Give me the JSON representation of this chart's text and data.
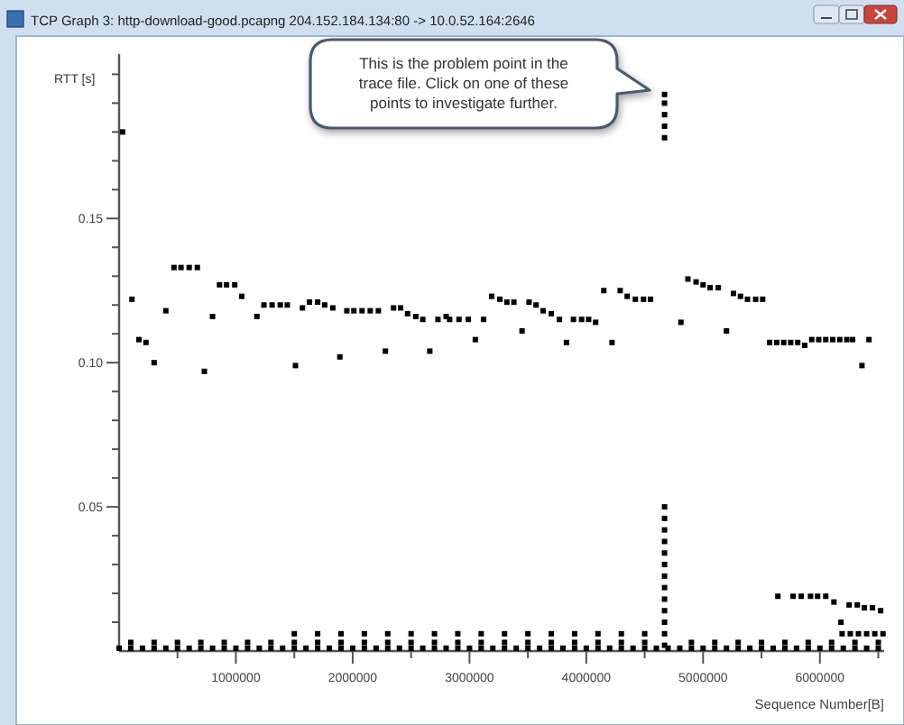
{
  "chart_data": {
    "type": "scatter",
    "title": "TCP Graph 3: http-download-good.pcapng 204.152.184.134:80 -> 10.0.52.164:2646",
    "xlabel": "Sequence Number[B]",
    "ylabel": "RTT [s]",
    "marker": "square",
    "annotations": [
      "This is the problem point in the trace file. Click on one of these points to investigate further."
    ],
    "xlim": [
      0,
      6550000
    ],
    "ylim": [
      0,
      0.207
    ],
    "xticks": [
      {
        "value": 500000,
        "label": null
      },
      1000000,
      {
        "value": 1500000,
        "label": null
      },
      2000000,
      {
        "value": 2500000,
        "label": null
      },
      3000000,
      {
        "value": 3500000,
        "label": null
      },
      4000000,
      {
        "value": 4500000,
        "label": null
      },
      5000000,
      {
        "value": 5500000,
        "label": null
      },
      6000000,
      {
        "value": 6500000,
        "label": null
      }
    ],
    "yticks": [
      {
        "value": 0.01,
        "label": null
      },
      {
        "value": 0.02,
        "label": null
      },
      {
        "value": 0.03,
        "label": null
      },
      {
        "value": 0.04,
        "label": null
      },
      0.05,
      {
        "value": 0.06,
        "label": null
      },
      {
        "value": 0.07,
        "label": null
      },
      {
        "value": 0.08,
        "label": null
      },
      {
        "value": 0.09,
        "label": null
      },
      {
        "value": 0.1,
        "label": "0.10"
      },
      {
        "value": 0.11,
        "label": null
      },
      {
        "value": 0.12,
        "label": null
      },
      {
        "value": 0.13,
        "label": null
      },
      {
        "value": 0.14,
        "label": null
      },
      0.15,
      {
        "value": 0.16,
        "label": null
      },
      {
        "value": 0.17,
        "label": null
      },
      {
        "value": 0.18,
        "label": null
      },
      {
        "value": 0.19,
        "label": null
      },
      {
        "value": 0.2,
        "label": null
      }
    ],
    "series": [
      {
        "color": "#000000",
        "x": [
          30000,
          110000,
          170000,
          230000,
          300000,
          400000,
          470000,
          530000,
          600000,
          670000,
          730000,
          800000,
          860000,
          920000,
          990000,
          1050000,
          1180000,
          1240000,
          1310000,
          1380000,
          1440000,
          1510000,
          1570000,
          1630000,
          1700000,
          1760000,
          1830000,
          1890000,
          1950000,
          2010000,
          2080000,
          2150000,
          2220000,
          2280000,
          2350000,
          2410000,
          2470000,
          2540000,
          2600000,
          2660000,
          2730000,
          2800000,
          2830000,
          2910000,
          2990000,
          3050000,
          3120000,
          3190000,
          3260000,
          3320000,
          3380000,
          3450000,
          3510000,
          3570000,
          3630000,
          3700000,
          3770000,
          3830000,
          3890000,
          3960000,
          4020000,
          4080000,
          4150000,
          4220000,
          4290000,
          4350000,
          4420000,
          4490000,
          4550000,
          4810000,
          4870000,
          4940000,
          5000000,
          5060000,
          5130000,
          5200000,
          5260000,
          5320000,
          5380000,
          5450000,
          5510000,
          5570000,
          5630000,
          5690000,
          5750000,
          5810000,
          5870000,
          5930000,
          5990000,
          6050000,
          6110000,
          6170000,
          6230000,
          6280000,
          6360000,
          6420000
        ],
        "values": [
          0.18,
          0.122,
          0.108,
          0.107,
          0.1,
          0.118,
          0.133,
          0.133,
          0.133,
          0.133,
          0.097,
          0.116,
          0.127,
          0.127,
          0.127,
          0.123,
          0.116,
          0.12,
          0.12,
          0.12,
          0.12,
          0.099,
          0.119,
          0.121,
          0.121,
          0.12,
          0.119,
          0.102,
          0.118,
          0.118,
          0.118,
          0.118,
          0.118,
          0.104,
          0.119,
          0.119,
          0.117,
          0.116,
          0.115,
          0.104,
          0.115,
          0.116,
          0.115,
          0.115,
          0.115,
          0.108,
          0.115,
          0.123,
          0.122,
          0.121,
          0.121,
          0.111,
          0.121,
          0.12,
          0.118,
          0.117,
          0.115,
          0.107,
          0.115,
          0.115,
          0.115,
          0.114,
          0.125,
          0.107,
          0.125,
          0.123,
          0.122,
          0.122,
          0.122,
          0.114,
          0.129,
          0.128,
          0.127,
          0.126,
          0.126,
          0.111,
          0.124,
          0.123,
          0.122,
          0.122,
          0.122,
          0.107,
          0.107,
          0.107,
          0.107,
          0.107,
          0.106,
          0.108,
          0.108,
          0.108,
          0.108,
          0.108,
          0.108,
          0.108,
          0.099,
          0.108
        ]
      },
      {
        "color": "#000000",
        "x": [
          4670000,
          4670000,
          4670000,
          4670000,
          4670000,
          4670000,
          4670000,
          4670000,
          4670000,
          4670000,
          4670000,
          4670000,
          4670000,
          4670000,
          4670000,
          4670000,
          4670000,
          4670000
        ],
        "values": [
          0.002,
          0.006,
          0.01,
          0.014,
          0.018,
          0.022,
          0.026,
          0.03,
          0.034,
          0.038,
          0.042,
          0.046,
          0.05,
          0.178,
          0.182,
          0.186,
          0.19,
          0.193
        ]
      },
      {
        "color": "#000000",
        "x": [
          5640000,
          5770000,
          5840000,
          5920000,
          5980000,
          6050000,
          6120000,
          6180000,
          6250000,
          6320000,
          6380000,
          6450000,
          6520000,
          6190000,
          6260000,
          6330000,
          6400000,
          6470000,
          6540000
        ],
        "values": [
          0.019,
          0.019,
          0.019,
          0.019,
          0.019,
          0.019,
          0.017,
          0.01,
          0.016,
          0.016,
          0.015,
          0.015,
          0.014,
          0.006,
          0.006,
          0.006,
          0.006,
          0.006,
          0.006
        ]
      },
      {
        "color": "#000000",
        "x": [
          0,
          100000,
          200000,
          300000,
          400000,
          500000,
          600000,
          700000,
          800000,
          900000,
          1000000,
          1100000,
          1200000,
          1300000,
          1400000,
          1500000,
          1600000,
          1700000,
          1800000,
          1900000,
          2000000,
          2100000,
          2200000,
          2300000,
          2400000,
          2500000,
          2600000,
          2700000,
          2800000,
          2900000,
          3000000,
          3100000,
          3200000,
          3300000,
          3400000,
          3500000,
          3600000,
          3700000,
          3800000,
          3900000,
          4000000,
          4100000,
          4200000,
          4300000,
          4400000,
          4500000,
          4600000,
          4700000,
          4800000,
          4900000,
          5000000,
          5100000,
          5200000,
          5300000,
          5400000,
          5500000,
          5600000,
          5700000,
          5800000,
          5900000,
          6000000,
          6100000,
          6200000,
          6300000,
          6400000,
          6500000
        ],
        "values": [
          0.001,
          0.001,
          0.001,
          0.001,
          0.001,
          0.001,
          0.001,
          0.001,
          0.001,
          0.001,
          0.001,
          0.001,
          0.001,
          0.001,
          0.001,
          0.001,
          0.001,
          0.001,
          0.001,
          0.001,
          0.001,
          0.001,
          0.001,
          0.001,
          0.001,
          0.001,
          0.001,
          0.001,
          0.001,
          0.001,
          0.001,
          0.001,
          0.001,
          0.001,
          0.001,
          0.001,
          0.001,
          0.001,
          0.001,
          0.001,
          0.001,
          0.001,
          0.001,
          0.001,
          0.001,
          0.001,
          0.001,
          0.001,
          0.001,
          0.001,
          0.001,
          0.001,
          0.001,
          0.001,
          0.001,
          0.001,
          0.001,
          0.001,
          0.001,
          0.001,
          0.001,
          0.001,
          0.001,
          0.001,
          0.001,
          0.001
        ]
      },
      {
        "color": "#000000",
        "x": [
          100000,
          300000,
          500000,
          700000,
          900000,
          1100000,
          1300000,
          1500000,
          1700000,
          1900000,
          2100000,
          2300000,
          2500000,
          2700000,
          2900000,
          3100000,
          3300000,
          3500000,
          3700000,
          3900000,
          4100000,
          4300000,
          4500000,
          4900000,
          5100000,
          5300000,
          5500000,
          5700000,
          5900000,
          6100000,
          6300000,
          6500000
        ],
        "values": [
          0.003,
          0.003,
          0.003,
          0.003,
          0.003,
          0.003,
          0.003,
          0.003,
          0.003,
          0.003,
          0.003,
          0.003,
          0.003,
          0.003,
          0.003,
          0.003,
          0.003,
          0.003,
          0.003,
          0.003,
          0.003,
          0.003,
          0.003,
          0.003,
          0.003,
          0.003,
          0.003,
          0.003,
          0.003,
          0.003,
          0.003,
          0.003
        ]
      },
      {
        "color": "#000000",
        "x": [
          1500000,
          1700000,
          1900000,
          2100000,
          2300000,
          2500000,
          2700000,
          2900000,
          3100000,
          3300000,
          3500000,
          3700000,
          3900000,
          4100000,
          4300000,
          4500000
        ],
        "values": [
          0.006,
          0.006,
          0.006,
          0.006,
          0.006,
          0.006,
          0.006,
          0.006,
          0.006,
          0.006,
          0.006,
          0.006,
          0.006,
          0.006,
          0.006,
          0.006
        ]
      }
    ]
  }
}
